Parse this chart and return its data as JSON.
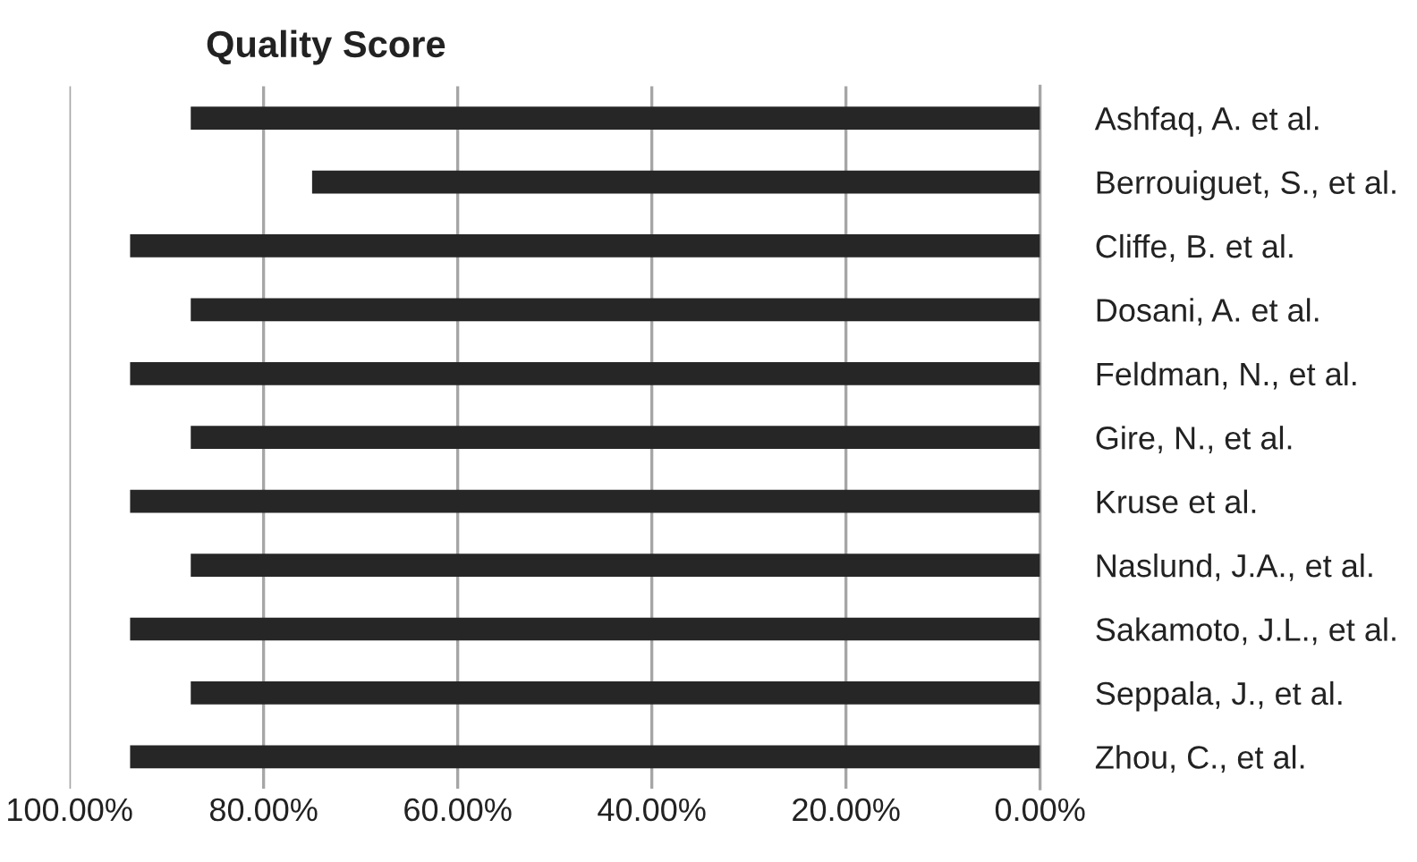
{
  "chart_data": {
    "type": "bar",
    "orientation": "horizontal",
    "title": "Quality Score",
    "categories": [
      "Ashfaq, A. et al.",
      "Berrouiguet, S., et al.",
      "Cliffe, B. et al.",
      "Dosani, A. et al.",
      "Feldman, N., et al.",
      "Gire, N., et al.",
      "Kruse et al.",
      "Naslund, J.A., et al.",
      "Sakamoto, J.L., et al.",
      "Seppala, J., et al.",
      "Zhou, C., et al."
    ],
    "values": [
      87.5,
      75,
      93.75,
      87.5,
      93.75,
      87.5,
      93.75,
      87.5,
      93.75,
      87.5,
      93.75
    ],
    "color": "#262626",
    "xlim": [
      100,
      0
    ],
    "xticks": [
      {
        "value": 100,
        "label": "100.00%"
      },
      {
        "value": 80,
        "label": "80.00%"
      },
      {
        "value": 60,
        "label": "60.00%"
      },
      {
        "value": 40,
        "label": "40.00%"
      },
      {
        "value": 20,
        "label": "20.00%"
      },
      {
        "value": 0,
        "label": "0.00%"
      }
    ],
    "grid": "x",
    "legend": false
  }
}
